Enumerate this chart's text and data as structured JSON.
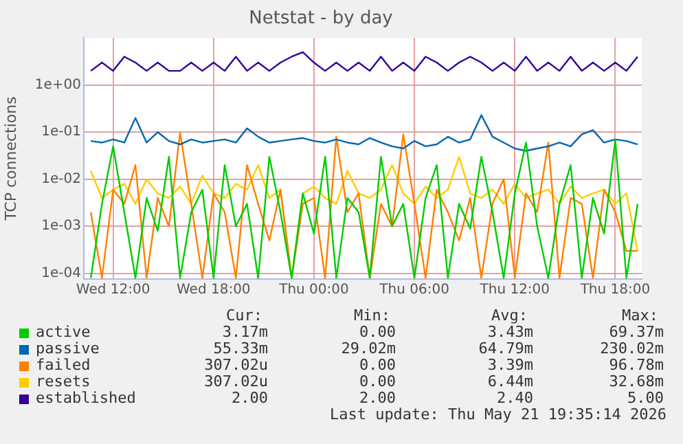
{
  "chart_data": {
    "type": "line",
    "title": "Netstat - by day",
    "ylabel": "TCP connections",
    "log": "y",
    "grid": true,
    "legend": "bottom",
    "marker": "none",
    "line_style": "solid",
    "x": [
      "2026-05-20T10:40",
      "2026-05-20T11:20",
      "2026-05-20T12:00",
      "2026-05-20T12:40",
      "2026-05-20T13:20",
      "2026-05-20T14:00",
      "2026-05-20T14:40",
      "2026-05-20T15:20",
      "2026-05-20T16:00",
      "2026-05-20T16:40",
      "2026-05-20T17:20",
      "2026-05-20T18:00",
      "2026-05-20T18:40",
      "2026-05-20T19:20",
      "2026-05-20T20:00",
      "2026-05-20T20:40",
      "2026-05-20T21:20",
      "2026-05-20T22:00",
      "2026-05-20T22:40",
      "2026-05-20T23:20",
      "2026-05-21T00:00",
      "2026-05-21T00:40",
      "2026-05-21T01:20",
      "2026-05-21T02:00",
      "2026-05-21T02:40",
      "2026-05-21T03:20",
      "2026-05-21T04:00",
      "2026-05-21T04:40",
      "2026-05-21T05:20",
      "2026-05-21T06:00",
      "2026-05-21T06:40",
      "2026-05-21T07:20",
      "2026-05-21T08:00",
      "2026-05-21T08:40",
      "2026-05-21T09:20",
      "2026-05-21T10:00",
      "2026-05-21T10:40",
      "2026-05-21T11:20",
      "2026-05-21T12:00",
      "2026-05-21T12:40",
      "2026-05-21T13:20",
      "2026-05-21T14:00",
      "2026-05-21T14:40",
      "2026-05-21T15:20",
      "2026-05-21T16:00",
      "2026-05-21T16:40",
      "2026-05-21T17:20",
      "2026-05-21T18:00",
      "2026-05-21T18:40",
      "2026-05-21T19:20"
    ],
    "xlim": [
      "2026-05-20T10:15",
      "2026-05-21T19:35"
    ],
    "xticks": [
      {
        "value": "2026-05-20T12:00",
        "label": "Wed 12:00"
      },
      {
        "value": "2026-05-20T18:00",
        "label": "Wed 18:00"
      },
      {
        "value": "2026-05-21T00:00",
        "label": "Thu 00:00"
      },
      {
        "value": "2026-05-21T06:00",
        "label": "Thu 06:00"
      },
      {
        "value": "2026-05-21T12:00",
        "label": "Thu 12:00"
      },
      {
        "value": "2026-05-21T18:00",
        "label": "Thu 18:00"
      }
    ],
    "ylim": [
      7.6e-05,
      10
    ],
    "yticks": [
      {
        "value": 0.0001,
        "label": "1e-04"
      },
      {
        "value": 0.001,
        "label": "1e-03"
      },
      {
        "value": 0.01,
        "label": "1e-02"
      },
      {
        "value": 0.1,
        "label": "1e-01"
      },
      {
        "value": 1,
        "label": "1e+00"
      }
    ],
    "series": [
      {
        "name": "active",
        "color": "#00cc00",
        "values": [
          8e-05,
          0.003,
          0.05,
          0.002,
          8e-05,
          0.004,
          0.0008,
          0.03,
          8e-05,
          0.002,
          0.006,
          8e-05,
          0.02,
          0.001,
          0.003,
          8e-05,
          0.03,
          0.002,
          8e-05,
          0.005,
          0.0007,
          0.03,
          8e-05,
          0.004,
          0.002,
          8e-05,
          0.03,
          0.001,
          0.003,
          8e-05,
          0.004,
          0.02,
          8e-05,
          0.003,
          0.0009,
          0.03,
          0.002,
          8e-05,
          0.005,
          0.06,
          0.001,
          8e-05,
          0.003,
          0.02,
          8e-05,
          0.004,
          0.0007,
          0.069,
          8e-05,
          0.003
        ]
      },
      {
        "name": "passive",
        "color": "#0066b3",
        "values": [
          0.065,
          0.06,
          0.07,
          0.06,
          0.2,
          0.06,
          0.1,
          0.065,
          0.055,
          0.07,
          0.06,
          0.065,
          0.07,
          0.06,
          0.12,
          0.08,
          0.06,
          0.065,
          0.07,
          0.075,
          0.065,
          0.06,
          0.07,
          0.06,
          0.055,
          0.075,
          0.06,
          0.05,
          0.045,
          0.065,
          0.05,
          0.055,
          0.08,
          0.06,
          0.07,
          0.23,
          0.08,
          0.06,
          0.045,
          0.04,
          0.045,
          0.05,
          0.06,
          0.05,
          0.09,
          0.11,
          0.06,
          0.07,
          0.065,
          0.055
        ]
      },
      {
        "name": "failed",
        "color": "#ff8000",
        "values": [
          0.002,
          8e-05,
          0.006,
          0.003,
          0.02,
          8e-05,
          0.004,
          0.001,
          0.097,
          0.003,
          8e-05,
          0.005,
          0.002,
          8e-05,
          0.02,
          0.003,
          0.0005,
          0.006,
          8e-05,
          0.003,
          0.004,
          8e-05,
          0.08,
          0.002,
          0.005,
          8e-05,
          0.003,
          0.001,
          0.09,
          0.003,
          8e-05,
          0.006,
          0.002,
          0.0005,
          0.004,
          8e-05,
          0.003,
          0.01,
          8e-05,
          0.005,
          0.002,
          0.06,
          8e-05,
          0.004,
          0.003,
          8e-05,
          0.006,
          0.002,
          0.0003,
          0.0003
        ]
      },
      {
        "name": "resets",
        "color": "#ffcc00",
        "values": [
          0.015,
          0.004,
          0.006,
          0.008,
          0.003,
          0.01,
          0.005,
          0.004,
          0.007,
          0.003,
          0.012,
          0.005,
          0.004,
          0.008,
          0.006,
          0.02,
          0.004,
          0.006,
          8e-05,
          0.005,
          0.007,
          0.004,
          0.003,
          0.015,
          0.005,
          0.004,
          0.006,
          0.02,
          0.005,
          0.003,
          0.007,
          0.004,
          0.006,
          0.03,
          0.005,
          0.004,
          0.006,
          0.003,
          0.008,
          0.004,
          0.005,
          0.006,
          0.003,
          0.007,
          0.004,
          0.005,
          0.006,
          0.003,
          0.005,
          0.0003
        ]
      },
      {
        "name": "established",
        "color": "#330099",
        "values": [
          2,
          3,
          2,
          4,
          3,
          2,
          3,
          2,
          2,
          3,
          2,
          3,
          2,
          4,
          2,
          3,
          2,
          3,
          4,
          5,
          3,
          2,
          3,
          2,
          3,
          2,
          4,
          2,
          3,
          2,
          4,
          3,
          2,
          3,
          4,
          3,
          2,
          3,
          2,
          4,
          2,
          3,
          2,
          4,
          2,
          3,
          2,
          3,
          2,
          4
        ]
      }
    ],
    "annotations": [
      "Cur:",
      "Min:",
      "Avg:",
      "Max:",
      "3.17m",
      "0.00",
      "3.43m",
      "69.37m",
      "55.33m",
      "29.02m",
      "64.79m",
      "230.02m",
      "307.02u",
      "0.00",
      "3.39m",
      "96.78m",
      "307.02u",
      "0.00",
      "6.44m",
      "32.68m",
      "2.00",
      "2.00",
      "2.40",
      "5.00",
      "Last update: Thu May 21 19:35:14 2026"
    ]
  }
}
